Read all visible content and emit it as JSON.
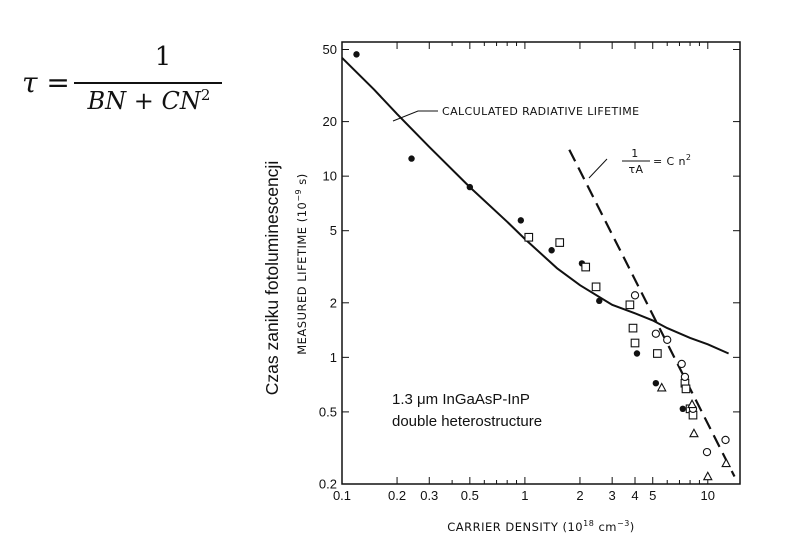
{
  "formula": {
    "lhs": "τ =",
    "numerator": "1",
    "denominator_base": "BN + CN",
    "denominator_exp": "2"
  },
  "chart_data": {
    "type": "scatter",
    "title": "",
    "xlabel": "CARRIER DENSITY (10",
    "xlabel_exp": "18",
    "xlabel_unit": " cm",
    "xlabel_unit_exp": "−3",
    "xlabel_close": ")",
    "ylabel": "MEASURED LIFETIME (10",
    "ylabel_exp": "−9",
    "ylabel_close": " s)",
    "ylabel_overlay": "Czas zaniku fotoluminescencji",
    "x_scale": "log",
    "y_scale": "log",
    "xlim": [
      0.1,
      15
    ],
    "ylim": [
      0.2,
      55
    ],
    "x_ticks": [
      0.1,
      0.2,
      0.3,
      0.5,
      1,
      2,
      3,
      4,
      5,
      10
    ],
    "x_tick_labels": [
      "0.1",
      "0.2",
      "0.3",
      "0.5",
      "1",
      "2",
      "3",
      "4",
      "5",
      "10"
    ],
    "y_ticks": [
      0.2,
      0.5,
      1,
      2,
      5,
      10,
      20,
      50
    ],
    "y_tick_labels": [
      "0.2",
      "0.5",
      "1",
      "2",
      "5",
      "10",
      "20",
      "50"
    ],
    "grid": false,
    "lines": [
      {
        "label": "CALCULATED RADIATIVE LIFETIME",
        "style": "solid",
        "x": [
          0.1,
          0.15,
          0.2,
          0.3,
          0.5,
          0.8,
          1,
          1.5,
          2,
          3,
          4,
          5,
          6,
          8,
          10,
          13
        ],
        "y": [
          45,
          30,
          22,
          14.5,
          8.7,
          5.6,
          4.5,
          3.1,
          2.5,
          1.95,
          1.75,
          1.6,
          1.45,
          1.28,
          1.18,
          1.05
        ]
      },
      {
        "label_num": "1",
        "label_den": "τA",
        "label_rhs": "= C n",
        "label_exp": "2",
        "style": "dashed",
        "x": [
          1.75,
          14
        ],
        "y": [
          14,
          0.22
        ]
      }
    ],
    "series": [
      {
        "marker": "filled-circle",
        "x": [
          0.12,
          0.24,
          0.5,
          0.95,
          1.4,
          2.05,
          2.55,
          4.1,
          5.2,
          7.3
        ],
        "y": [
          47,
          12.5,
          8.7,
          5.7,
          3.9,
          3.3,
          2.05,
          1.05,
          0.72,
          0.52
        ]
      },
      {
        "marker": "open-square",
        "x": [
          1.05,
          1.55,
          2.15,
          2.45,
          3.75,
          3.9,
          4.0,
          5.3,
          7.5,
          7.6,
          8.0,
          8.3
        ],
        "y": [
          4.6,
          4.3,
          3.15,
          2.45,
          1.95,
          1.45,
          1.2,
          1.05,
          0.72,
          0.67,
          0.52,
          0.48
        ]
      },
      {
        "marker": "open-circle",
        "x": [
          4.0,
          5.2,
          6.0,
          7.2,
          7.5,
          8.3,
          9.9,
          12.5
        ],
        "y": [
          2.2,
          1.35,
          1.25,
          0.92,
          0.78,
          0.52,
          0.3,
          0.35
        ]
      },
      {
        "marker": "open-triangle",
        "x": [
          5.6,
          8.2,
          8.4,
          10.0,
          12.6
        ],
        "y": [
          0.68,
          0.55,
          0.38,
          0.22,
          0.26
        ]
      }
    ],
    "annotation": {
      "line1": "1.3 μm InGaAsP-InP",
      "line2": "double heterostructure"
    }
  }
}
